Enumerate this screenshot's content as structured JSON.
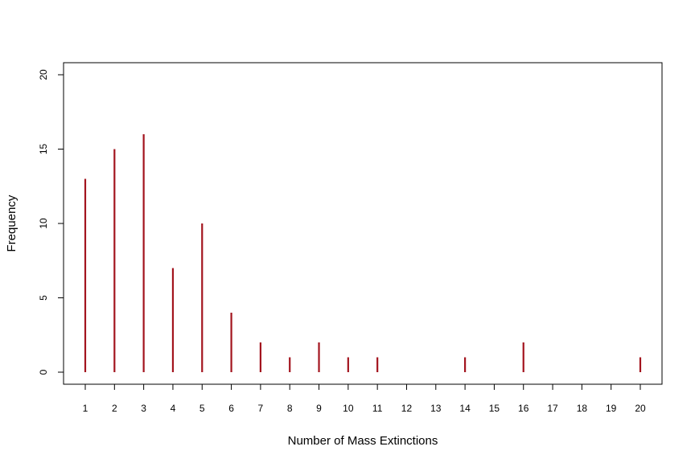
{
  "chart_data": {
    "type": "bar",
    "style": "spike",
    "title": "",
    "xlabel": "Number of Mass Extinctions",
    "ylabel": "Frequency",
    "categories": [
      "1",
      "2",
      "3",
      "4",
      "5",
      "6",
      "7",
      "8",
      "9",
      "10",
      "11",
      "12",
      "13",
      "14",
      "15",
      "16",
      "17",
      "18",
      "19",
      "20"
    ],
    "values": [
      13,
      15,
      16,
      7,
      10,
      4,
      2,
      1,
      2,
      1,
      1,
      0,
      0,
      1,
      0,
      2,
      0,
      0,
      0,
      1
    ],
    "xlim": [
      1,
      20
    ],
    "ylim": [
      0,
      20
    ],
    "yticks": [
      "0",
      "5",
      "10",
      "15",
      "20"
    ],
    "grid": false,
    "legend": "none",
    "bar_color": "#a3141e"
  }
}
